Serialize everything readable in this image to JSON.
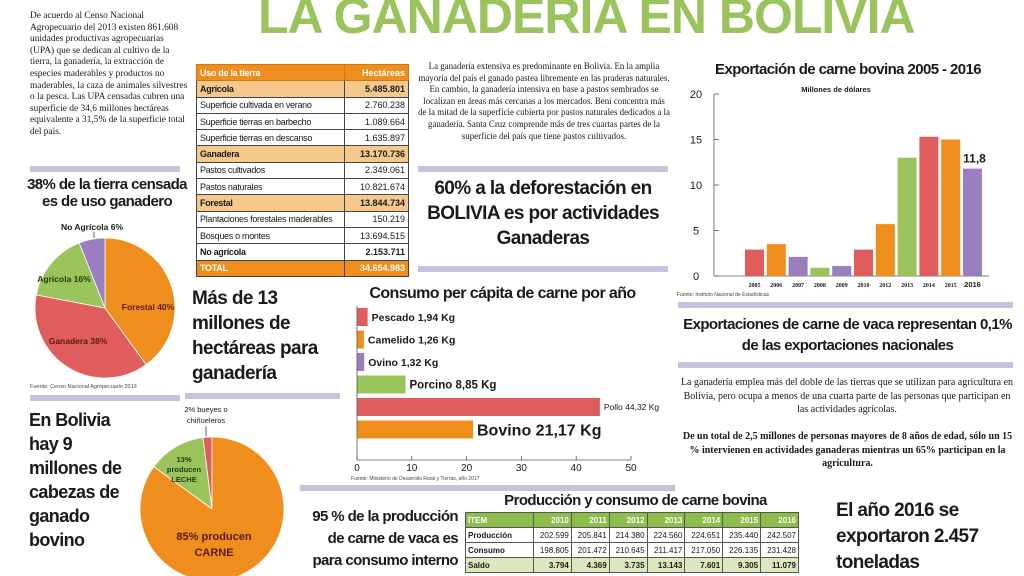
{
  "header": {
    "title": "LA GANADERIA EN BOLIVIA"
  },
  "intro_text": "De acuerdo al Censo Nacional Agropecuario del 2013 existen 861.608 unidades productivas agropecuarias (UPA) que se dedican al cultivo de la tierra, la ganadería, la extracción de especies maderables y productos no maderables, la caza de animales silvestres o la pesca. Las UPA censadas cubren una superficie de 34,6 millones hectáreas equivalente a 31,5% de la superficie total del país.",
  "land_table": {
    "headers": [
      "Uso de la tierra",
      "Hectáreas"
    ],
    "rows": [
      {
        "label": "Agrícola",
        "value": "5.485.801",
        "kind": "cat"
      },
      {
        "label": "Superficie cultivada en verano",
        "value": "2.760.238",
        "kind": "plain"
      },
      {
        "label": "Superficie tierras en barbecho",
        "value": "1.089.664",
        "kind": "plain"
      },
      {
        "label": "Superficie tierras en descanso",
        "value": "1.635.897",
        "kind": "plain"
      },
      {
        "label": "Ganadera",
        "value": "13.170.736",
        "kind": "cat"
      },
      {
        "label": "Pastos cultivados",
        "value": "2.349.061",
        "kind": "plain"
      },
      {
        "label": "Pastos naturales",
        "value": "10.821.674",
        "kind": "plain"
      },
      {
        "label": "Forestal",
        "value": "13.844.734",
        "kind": "cat"
      },
      {
        "label": "Plantaciones forestales maderables",
        "value": "150.219",
        "kind": "plain"
      },
      {
        "label": "Bosques o montes",
        "value": "13.694.515",
        "kind": "plain"
      },
      {
        "label": "No agrícola",
        "value": "2.153.711",
        "kind": "bold"
      },
      {
        "label": "TOTAL",
        "value": "34.654.983",
        "kind": "total"
      }
    ]
  },
  "para_ganaderia": "La ganadería extensiva es predominante en Bolivia. En la amplia mayoría del país el ganado pastea libremente en las praderas naturales.  En cambio, la ganadería intensiva en base a pastos sembrados se localizan en áreas más cercanas a los mercados. Beni concentra más de la mitad de la superficie cubierta por pastos naturales dedicados a la ganadería. Santa Cruz comprende más de tres cuartas partes de la superficie del país que tiene pastos cultivados.",
  "deforestation_headline": "60% a la deforestación en BOLIVIA es por actividades Ganaderas",
  "mas13_headline": "Más de 13 millones de hectáreas para ganadería",
  "bovino_headline": "En Bolivia hay 9 millones de cabezas de ganado bovino",
  "exportaciones_nacionales": "Exportaciones de carne de vaca representan 0,1% de las exportaciones nacionales",
  "para_empleo": "La ganadería emplea más del doble de las tierras que se utilizan para agricultura en Bolivia, pero ocupa a menos de una cuarta parte de las personas que participan en las actividades agrícolas.",
  "para_total": "De un total de 2,5 millones de personas mayores de 8 años de edad,  sólo un 15 % intervienen en actividades ganaderas mientras un 65% participan en la agricultura.",
  "consumo95_headline": "95 % de la producción de carne de vaca es para consumo interno",
  "anio2016_headline": "El año 2016 se exportaron 2.457 toneladas",
  "colors": {
    "green": "#9ac35c",
    "orange": "#ef8e1d",
    "red": "#e05d5d",
    "purple": "#9b7ec0",
    "divider": "#c9c0dd"
  },
  "prod_table": {
    "title": "Producción y consumo de carne bovina",
    "headers": [
      "ÍTEM",
      "2010",
      "2011",
      "2012",
      "2013",
      "2014",
      "2015",
      "2016"
    ],
    "rows": [
      [
        "Producción",
        "202.599",
        "205.841",
        "214.380",
        "224.560",
        "224.651",
        "235.440",
        "242.507"
      ],
      [
        "Consumo",
        "198.805",
        "201.472",
        "210.645",
        "211.417",
        "217.050",
        "226.135",
        "231.428"
      ],
      [
        "Saldo",
        "3.794",
        "4.369",
        "3.735",
        "13.143",
        "7.601",
        "9.305",
        "11.079"
      ]
    ]
  },
  "chart_data": [
    {
      "type": "pie",
      "title": "38% de la tierra censada es de uso ganadero",
      "labels": [
        "Forestal 40%",
        "Ganadera 38%",
        "Agrícola 16%",
        "No Agrícola 6%"
      ],
      "values": [
        40,
        38,
        16,
        6
      ],
      "colors": [
        "#ef8e1d",
        "#e05d5d",
        "#9ac35c",
        "#9b7ec0"
      ],
      "source": "Fuente: Censo Nacional Agropecuario 2013"
    },
    {
      "type": "pie",
      "title": "",
      "labels": [
        "85% producen CARNE",
        "13% producen LECHE",
        "2% bueyes o chiñueleros"
      ],
      "label_lines": [
        [
          "85% producen",
          "CARNE"
        ],
        [
          "13%",
          "producen",
          "LECHE"
        ],
        [
          "2% bueyes o",
          "chiñueleros"
        ]
      ],
      "values": [
        85,
        13,
        2
      ],
      "colors": [
        "#ef8e1d",
        "#9ac35c",
        "#e05d5d"
      ]
    },
    {
      "type": "bar",
      "orientation": "horizontal",
      "title": "Consumo per cápita de carne por año",
      "categories": [
        "Pescado",
        "Camelido",
        "Ovino",
        "Porcino",
        "Pollo",
        "Bovino"
      ],
      "values": [
        1.94,
        1.26,
        1.32,
        8.85,
        44.32,
        21.17
      ],
      "data_labels": [
        "Pescado 1,94 Kg",
        "Camelido 1,26 Kg",
        "Ovino 1,32 Kg",
        "Porcino 8,85 Kg",
        "Pollo 44,32 Kg",
        "Bovino 21,17 Kg"
      ],
      "colors": [
        "#e05d5d",
        "#ef8e1d",
        "#9b7ec0",
        "#9ac35c",
        "#e05d5d",
        "#ef8e1d"
      ],
      "xlim": [
        0,
        50
      ],
      "xticks": [
        0,
        10,
        20,
        30,
        40,
        50
      ],
      "source": "Fuente: Ministerio de Desarrollo Rural y Tierras, año 2017"
    },
    {
      "type": "bar",
      "title": "Exportación de carne bovina 2005 - 2016",
      "subtitle": "Millones de dólares",
      "categories": [
        "2005",
        "2006",
        "2007",
        "2008",
        "2009",
        "2010",
        "2012",
        "2013",
        "2014",
        "2015",
        "2016"
      ],
      "values": [
        2.9,
        3.5,
        2.1,
        0.9,
        1.1,
        2.9,
        5.7,
        13.0,
        15.3,
        15.0,
        11.8
      ],
      "colors": [
        "#e05d5d",
        "#ef8e1d",
        "#9b7ec0",
        "#9ac35c",
        "#9b7ec0",
        "#e05d5d",
        "#ef8e1d",
        "#9ac35c",
        "#e05d5d",
        "#ef8e1d",
        "#9b7ec0"
      ],
      "annotation": "11,8",
      "ylim": [
        0,
        20
      ],
      "yticks": [
        0,
        5,
        10,
        15,
        20
      ],
      "xlabel": "",
      "ylabel": "",
      "source": "Fuente: Instituto Nacional de Estadísticas"
    }
  ]
}
